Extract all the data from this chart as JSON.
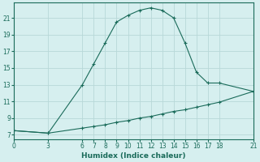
{
  "xlabel": "Humidex (Indice chaleur)",
  "bg_color": "#d6efef",
  "grid_color": "#b8d8d8",
  "line_color": "#1a6b5a",
  "curve1_x": [
    0,
    3,
    6,
    7,
    8,
    9,
    10,
    11,
    12,
    13,
    14,
    15,
    16,
    17,
    18,
    21
  ],
  "curve1_y": [
    7.5,
    7.2,
    13.0,
    15.5,
    18.0,
    20.5,
    21.3,
    21.9,
    22.2,
    21.9,
    21.0,
    18.0,
    14.5,
    13.2,
    13.2,
    12.2
  ],
  "curve2_x": [
    0,
    3,
    6,
    7,
    8,
    9,
    10,
    11,
    12,
    13,
    14,
    15,
    16,
    17,
    18,
    21
  ],
  "curve2_y": [
    7.5,
    7.2,
    7.8,
    8.0,
    8.2,
    8.5,
    8.7,
    9.0,
    9.2,
    9.5,
    9.8,
    10.0,
    10.3,
    10.6,
    10.9,
    12.2
  ],
  "xlim": [
    0,
    21
  ],
  "ylim": [
    6.5,
    22.8
  ],
  "xticks": [
    0,
    3,
    6,
    7,
    8,
    9,
    10,
    11,
    12,
    13,
    14,
    15,
    16,
    17,
    18,
    21
  ],
  "yticks": [
    7,
    9,
    11,
    13,
    15,
    17,
    19,
    21
  ]
}
